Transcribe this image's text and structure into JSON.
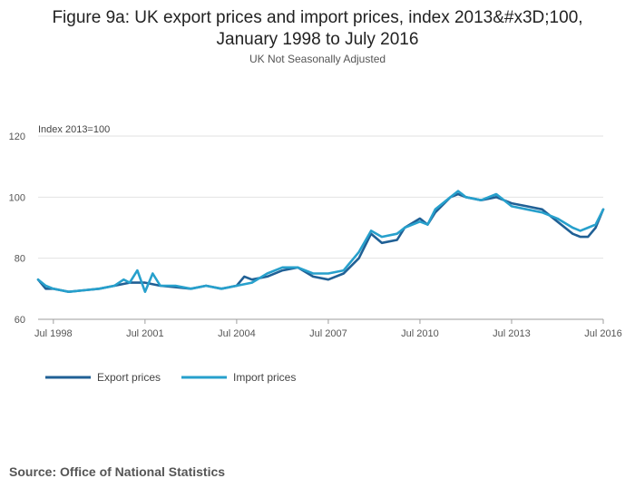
{
  "header": {
    "title_line1": "Figure 9a: UK export prices and import prices, index 2013&#x3D;100,",
    "title_line2": "January 1998 to July 2016",
    "subtitle": "UK Not Seasonally Adjusted"
  },
  "footer": {
    "source": "Source: Office of National Statistics"
  },
  "chart_data": {
    "type": "line",
    "title": "Figure 9a: UK export prices and import prices, index 2013&#x3D;100, January 1998 to July 2016",
    "subtitle": "UK Not Seasonally Adjusted",
    "ylabel": "Index 2013=100",
    "xlabel": "",
    "ylim": [
      60,
      120
    ],
    "yticks": [
      60,
      80,
      100,
      120
    ],
    "xlim": [
      1998.0,
      2016.5
    ],
    "xticks": [
      {
        "x": 1998.5,
        "label": "Jul 1998"
      },
      {
        "x": 2001.5,
        "label": "Jul 2001"
      },
      {
        "x": 2004.5,
        "label": "Jul 2004"
      },
      {
        "x": 2007.5,
        "label": "Jul 2007"
      },
      {
        "x": 2010.5,
        "label": "Jul 2010"
      },
      {
        "x": 2013.5,
        "label": "Jul 2013"
      },
      {
        "x": 2016.5,
        "label": "Jul 2016"
      }
    ],
    "grid": true,
    "legend_position": "bottom-left",
    "series": [
      {
        "name": "Export prices",
        "color": "#206095",
        "x": [
          1998.0,
          1998.25,
          1998.5,
          1998.75,
          1999.0,
          1999.5,
          2000.0,
          2000.5,
          2001.0,
          2001.5,
          2002.0,
          2002.5,
          2003.0,
          2003.5,
          2004.0,
          2004.5,
          2004.75,
          2005.0,
          2005.5,
          2006.0,
          2006.5,
          2007.0,
          2007.5,
          2008.0,
          2008.5,
          2008.9,
          2009.25,
          2009.75,
          2010.0,
          2010.5,
          2010.75,
          2011.0,
          2011.5,
          2011.75,
          2012.0,
          2012.5,
          2013.0,
          2013.5,
          2014.0,
          2014.5,
          2015.0,
          2015.5,
          2015.75,
          2016.0,
          2016.25,
          2016.5
        ],
        "y": [
          73,
          70,
          70,
          69.5,
          69,
          69.5,
          70,
          71,
          72,
          72,
          71,
          70.5,
          70,
          71,
          70,
          71,
          74,
          73,
          74,
          76,
          77,
          74,
          73,
          75,
          80,
          88,
          85,
          86,
          90,
          93,
          91,
          95,
          100,
          101,
          100,
          99,
          100,
          98,
          97,
          96,
          92,
          88,
          87,
          87,
          90,
          96
        ]
      },
      {
        "name": "Import prices",
        "color": "#27a0cc",
        "x": [
          1998.0,
          1998.25,
          1998.5,
          1998.75,
          1999.0,
          1999.5,
          2000.0,
          2000.5,
          2000.8,
          2001.0,
          2001.25,
          2001.5,
          2001.75,
          2002.0,
          2002.5,
          2003.0,
          2003.5,
          2004.0,
          2004.5,
          2005.0,
          2005.5,
          2006.0,
          2006.5,
          2007.0,
          2007.5,
          2008.0,
          2008.5,
          2008.9,
          2009.25,
          2009.75,
          2010.0,
          2010.5,
          2010.75,
          2011.0,
          2011.5,
          2011.75,
          2012.0,
          2012.5,
          2013.0,
          2013.5,
          2014.0,
          2014.5,
          2015.0,
          2015.5,
          2015.75,
          2016.0,
          2016.25,
          2016.5
        ],
        "y": [
          73,
          71,
          70,
          69.5,
          69,
          69.5,
          70,
          71,
          73,
          72,
          76,
          69,
          75,
          71,
          71,
          70,
          71,
          70,
          71,
          72,
          75,
          77,
          77,
          75,
          75,
          76,
          82,
          89,
          87,
          88,
          90,
          92,
          91,
          96,
          100,
          102,
          100,
          99,
          101,
          97,
          96,
          95,
          93,
          90,
          89,
          90,
          91,
          96
        ]
      }
    ]
  }
}
